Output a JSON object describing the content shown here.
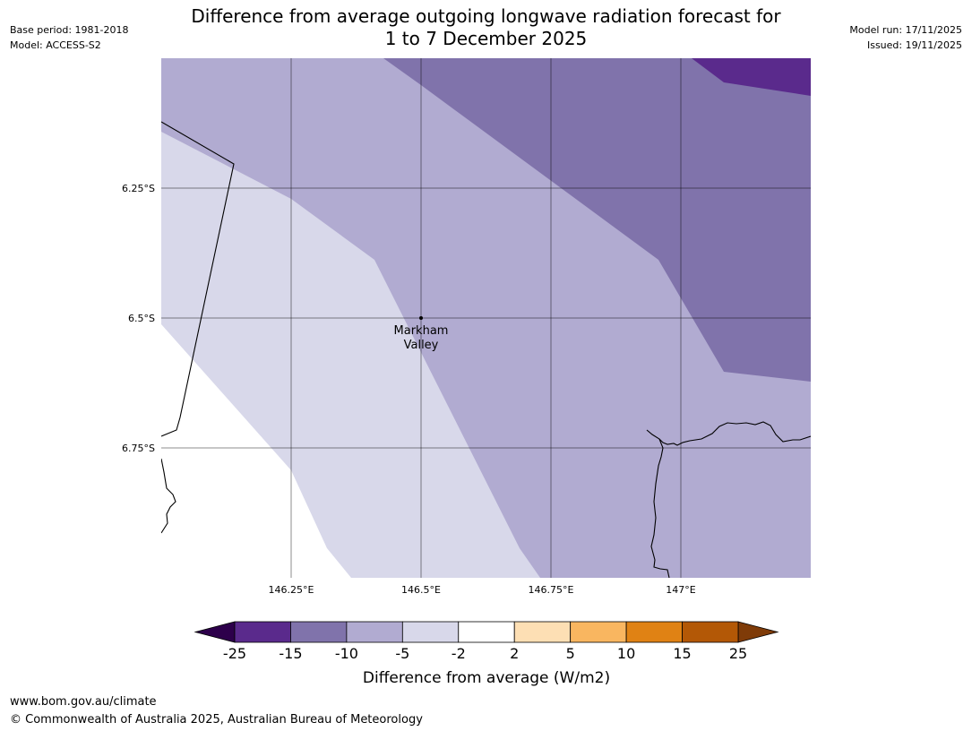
{
  "header": {
    "title_line1": "Difference from average outgoing longwave radiation forecast for",
    "title_line2": "1 to 7 December 2025",
    "base_period": "Base period: 1981-2018",
    "model": "Model: ACCESS-S2",
    "model_run": "Model run: 17/11/2025",
    "issued": "Issued: 19/11/2025"
  },
  "map": {
    "lon_range": [
      146.0,
      147.25
    ],
    "lat_range": [
      -6.0,
      -7.0
    ],
    "lon_ticks": [
      {
        "value": 146.25,
        "label": "146.25°E"
      },
      {
        "value": 146.5,
        "label": "146.5°E"
      },
      {
        "value": 146.75,
        "label": "146.75°E"
      },
      {
        "value": 147.0,
        "label": "147°E"
      }
    ],
    "lat_ticks": [
      {
        "value": -6.25,
        "label": "6.25°S"
      },
      {
        "value": -6.5,
        "label": "6.5°S"
      },
      {
        "value": -6.75,
        "label": "6.75°S"
      }
    ],
    "place": {
      "name_line1": "Markham",
      "name_line2": "Valley",
      "lon": 146.5,
      "lat": -6.5
    },
    "fill_colors": {
      "minus15_to_minus10": "#8073ab",
      "minus10_to_minus5": "#b1abd1",
      "minus5_to_minus2": "#d8d8ea",
      "minus25_to_minus15": "#5a2a8c",
      "neutral": "#ffffff"
    }
  },
  "colorbar": {
    "title": "Difference from average (W/m2)",
    "ticks": [
      "-25",
      "-15",
      "-10",
      "-5",
      "-2",
      "2",
      "5",
      "10",
      "15",
      "25"
    ],
    "segments": [
      "#5a2a8c",
      "#8073ab",
      "#b1abd1",
      "#d8d8ea",
      "#ffffff",
      "#fddfb4",
      "#f9b660",
      "#e08214",
      "#b35806"
    ],
    "under_color": "#2d004b",
    "over_color": "#7f3b08"
  },
  "footer": {
    "url": "www.bom.gov.au/climate",
    "copyright": "© Commonwealth of Australia 2025, Australian Bureau of Meteorology"
  }
}
